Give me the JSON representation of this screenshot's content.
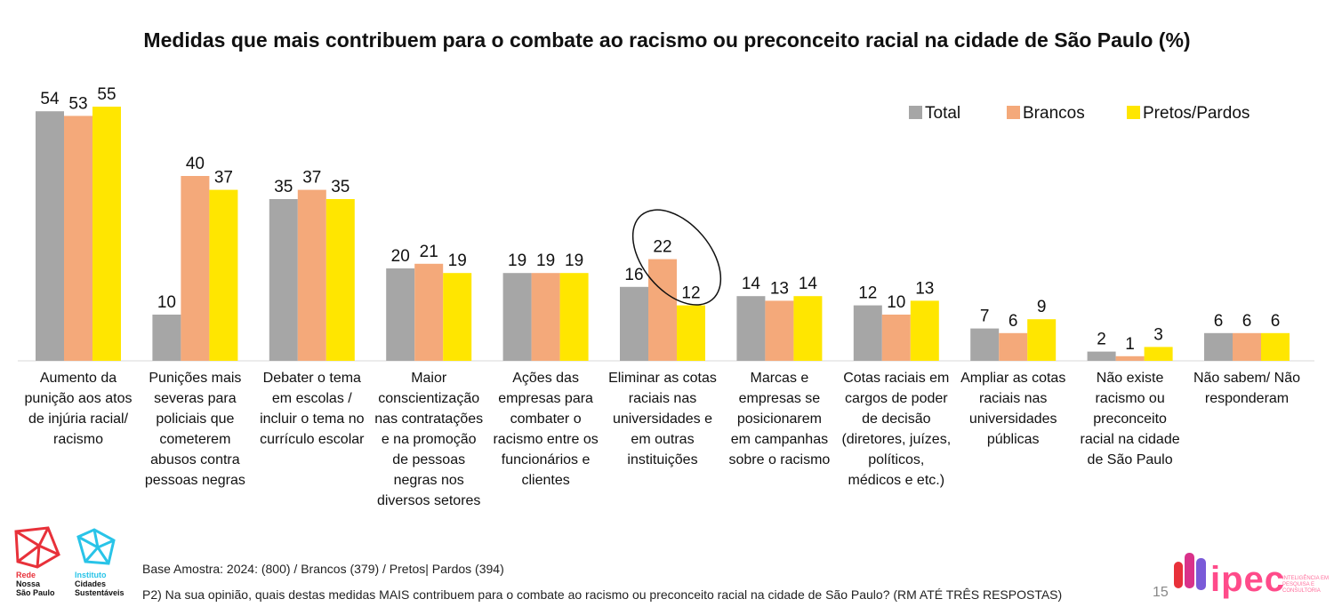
{
  "chart_data": {
    "type": "bar",
    "title": "Medidas que mais contribuem para o combate ao racismo ou preconceito racial na cidade de São Paulo (%)",
    "ylim": [
      0,
      60
    ],
    "legend_position": "top-right",
    "categories": [
      [
        "Aumento da",
        "punição aos atos",
        "de injúria racial/",
        "racismo"
      ],
      [
        "Punições mais",
        "severas para",
        "policiais que",
        "cometerem",
        "abusos contra",
        "pessoas negras"
      ],
      [
        "Debater o tema",
        "em escolas /",
        "incluir o tema no",
        "currículo escolar"
      ],
      [
        "Maior",
        "conscientização",
        "nas contratações",
        "e na promoção",
        "de pessoas",
        "negras nos",
        "diversos setores"
      ],
      [
        "Ações das",
        "empresas para",
        "combater o",
        "racismo entre os",
        "funcionários e",
        "clientes"
      ],
      [
        "Eliminar as cotas",
        "raciais nas",
        "universidades e",
        "em outras",
        "instituições"
      ],
      [
        "Marcas e",
        "empresas se",
        "posicionarem",
        "em campanhas",
        "sobre o racismo"
      ],
      [
        "Cotas raciais em",
        "cargos de poder",
        "de decisão",
        "(diretores, juízes,",
        "políticos,",
        "médicos e etc.)"
      ],
      [
        "Ampliar as cotas",
        "raciais nas",
        "universidades",
        "públicas"
      ],
      [
        "Não existe",
        "racismo ou",
        "preconceito",
        "racial na cidade",
        "de São Paulo"
      ],
      [
        "Não sabem/ Não",
        "responderam"
      ]
    ],
    "series": [
      {
        "name": "Total",
        "color": "#a6a6a6",
        "values": [
          54,
          10,
          35,
          20,
          19,
          16,
          14,
          12,
          7,
          2,
          6
        ]
      },
      {
        "name": "Brancos",
        "color": "#f4a97a",
        "values": [
          53,
          40,
          37,
          21,
          19,
          22,
          13,
          10,
          6,
          1,
          6
        ]
      },
      {
        "name": "Pretos/Pardos",
        "color": "#ffe600",
        "values": [
          55,
          37,
          35,
          19,
          19,
          12,
          14,
          13,
          9,
          3,
          6
        ]
      }
    ],
    "highlighted_category_index": 5
  },
  "footer": {
    "base": "Base Amostra: 2024: (800) / Brancos (379) / Pretos| Pardos (394)",
    "question": "P2) Na sua opinião, quais destas medidas MAIS contribuem para o combate ao racismo ou preconceito racial na cidade de São Paulo? (RM ATÉ TRÊS RESPOSTAS)",
    "page_number": "15"
  },
  "logos": {
    "rede": [
      "Rede",
      "Nossa",
      "São Paulo"
    ],
    "instituto": [
      "Instituto",
      "Cidades",
      "Sustentáveis"
    ],
    "ipec": "ipec",
    "ipec_tagline": "INTELIGÊNCIA EM PESQUISA E CONSULTORIA",
    "rede_color": "#e8313a",
    "instituto_color": "#29c4e8"
  }
}
